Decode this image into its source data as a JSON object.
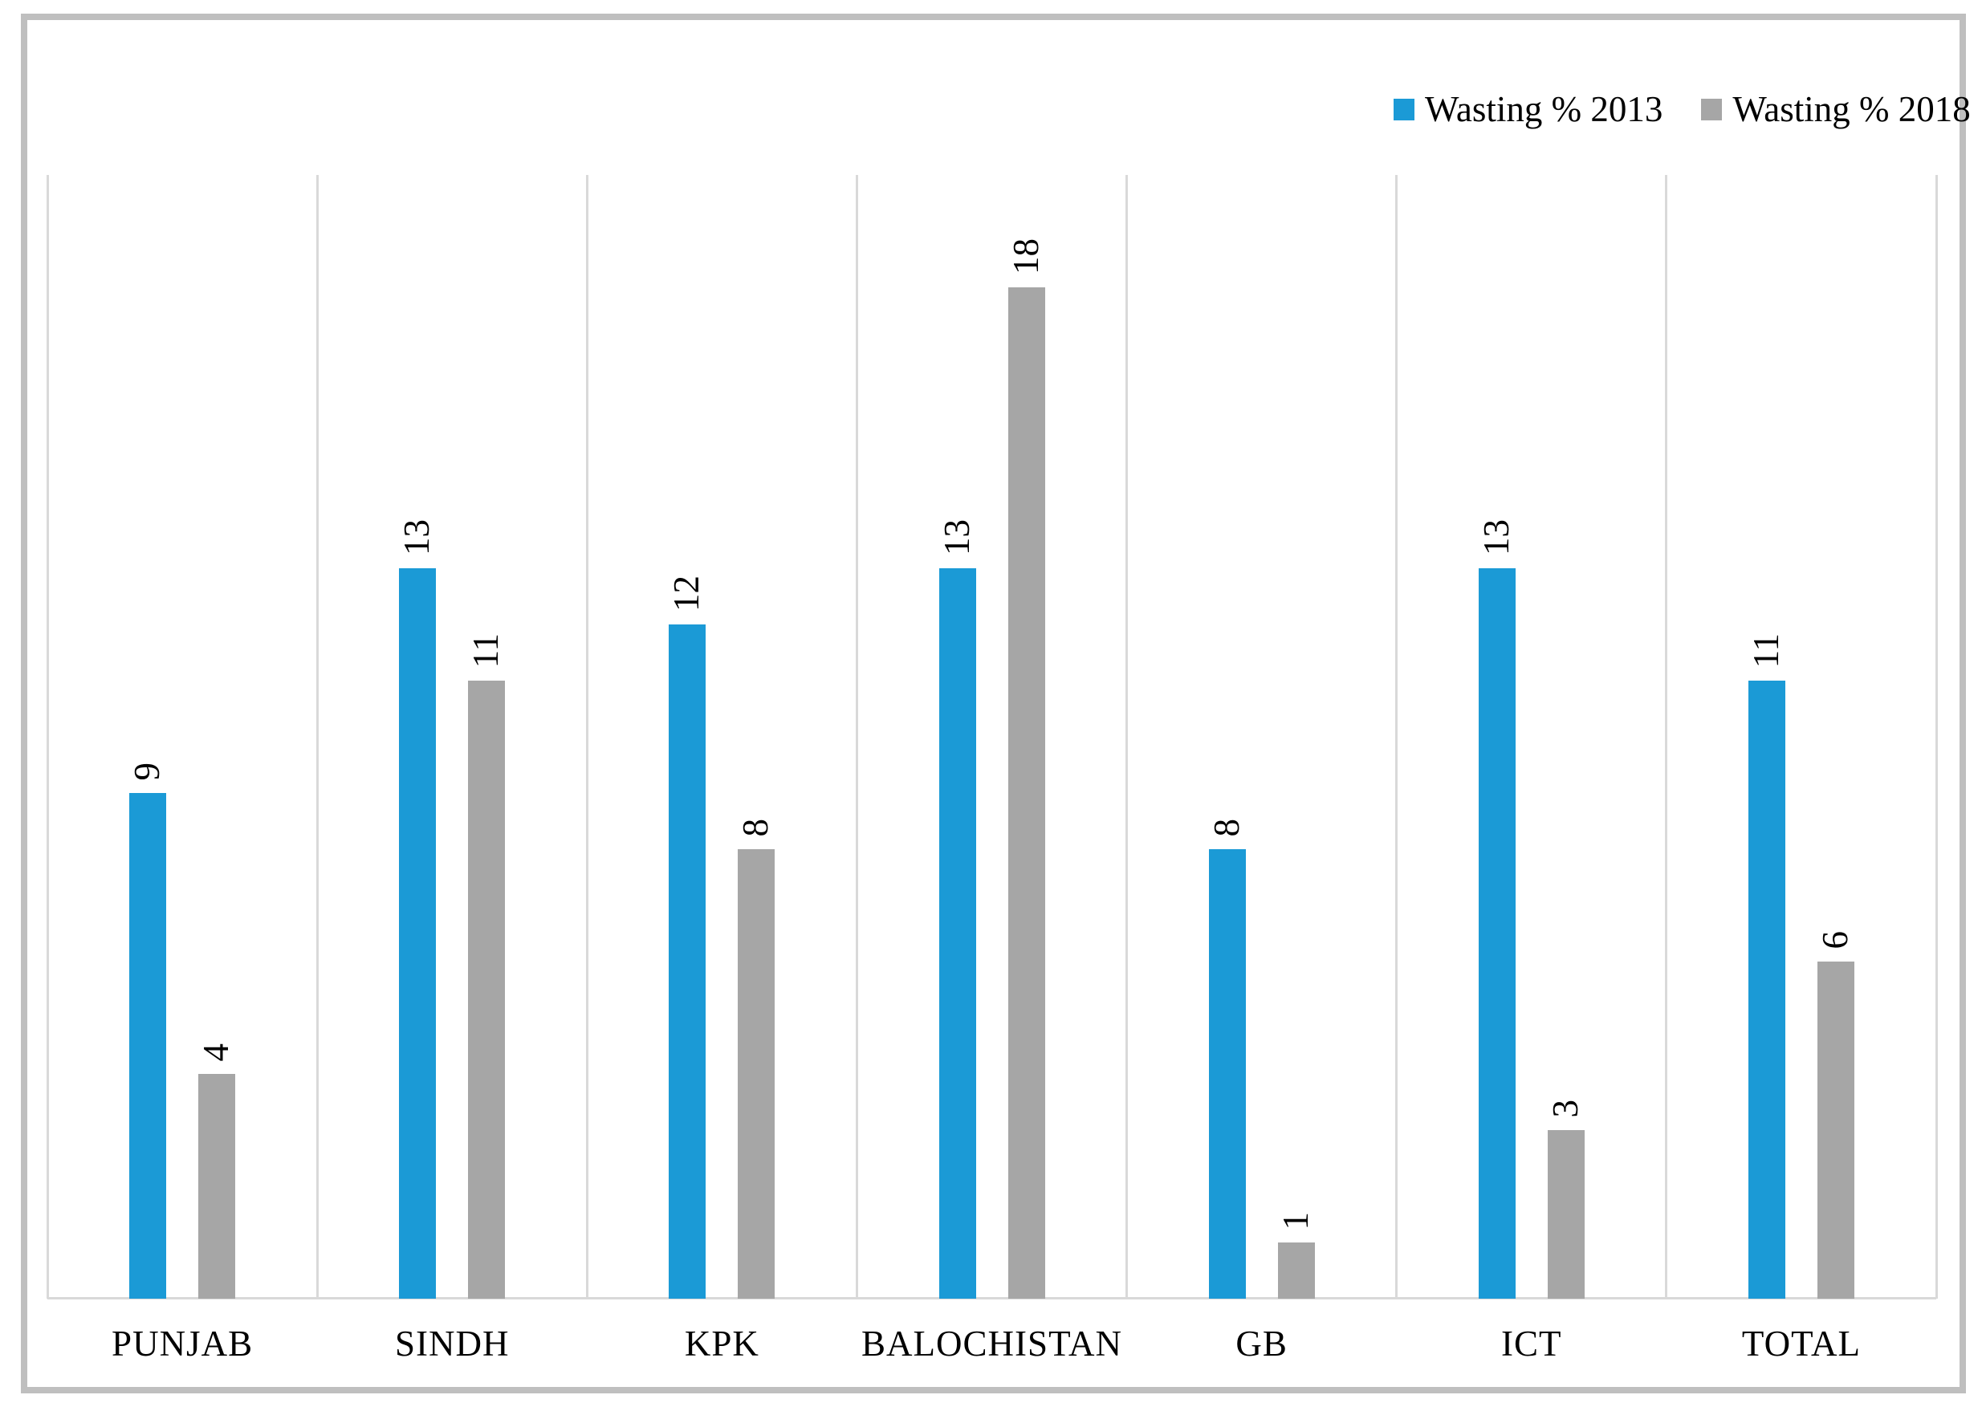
{
  "chart_data": {
    "type": "bar",
    "title": "",
    "categories": [
      "PUNJAB",
      "SINDH",
      "KPK",
      "BALOCHISTAN",
      "GB",
      "ICT",
      "TOTAL"
    ],
    "series": [
      {
        "name": "Wasting % 2013",
        "color": "#1b9ad6",
        "values": [
          9,
          13,
          12,
          13,
          8,
          13,
          11
        ]
      },
      {
        "name": "Wasting % 2018",
        "color": "#a6a6a6",
        "values": [
          4,
          11,
          8,
          18,
          1,
          3,
          6
        ]
      }
    ],
    "xlabel": "",
    "ylabel": "",
    "ylim": [
      0,
      20
    ],
    "grid": "vertical-category-boundaries-only",
    "legend_position": "top-right",
    "data_labels_orientation": "rotated-90-reading-bottom-to-top",
    "axis_line_color": "#d9d9d9",
    "gridline_color": "#d9d9d9",
    "frame_border_color": "#bfbfbf",
    "text_color": "#000000",
    "background_color": "#ffffff"
  }
}
